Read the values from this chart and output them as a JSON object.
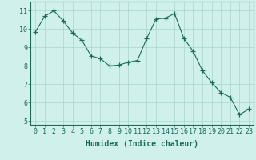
{
  "x": [
    0,
    1,
    2,
    3,
    4,
    5,
    6,
    7,
    8,
    9,
    10,
    11,
    12,
    13,
    14,
    15,
    16,
    17,
    18,
    19,
    20,
    21,
    22,
    23
  ],
  "y": [
    9.85,
    10.7,
    11.0,
    10.45,
    9.8,
    9.4,
    8.55,
    8.4,
    8.0,
    8.05,
    8.2,
    8.3,
    9.5,
    10.55,
    10.6,
    10.85,
    9.5,
    8.8,
    7.75,
    7.1,
    6.55,
    6.3,
    5.35,
    5.65
  ],
  "line_color": "#1a6b5a",
  "marker": "+",
  "marker_size": 4,
  "bg_color": "#cff0eb",
  "grid_color": "#aad4cc",
  "xlabel": "Humidex (Indice chaleur)",
  "ylim": [
    4.8,
    11.5
  ],
  "xlim": [
    -0.5,
    23.5
  ],
  "yticks": [
    5,
    6,
    7,
    8,
    9,
    10,
    11
  ],
  "xticks": [
    0,
    1,
    2,
    3,
    4,
    5,
    6,
    7,
    8,
    9,
    10,
    11,
    12,
    13,
    14,
    15,
    16,
    17,
    18,
    19,
    20,
    21,
    22,
    23
  ],
  "tick_fontsize": 6,
  "label_fontsize": 7
}
